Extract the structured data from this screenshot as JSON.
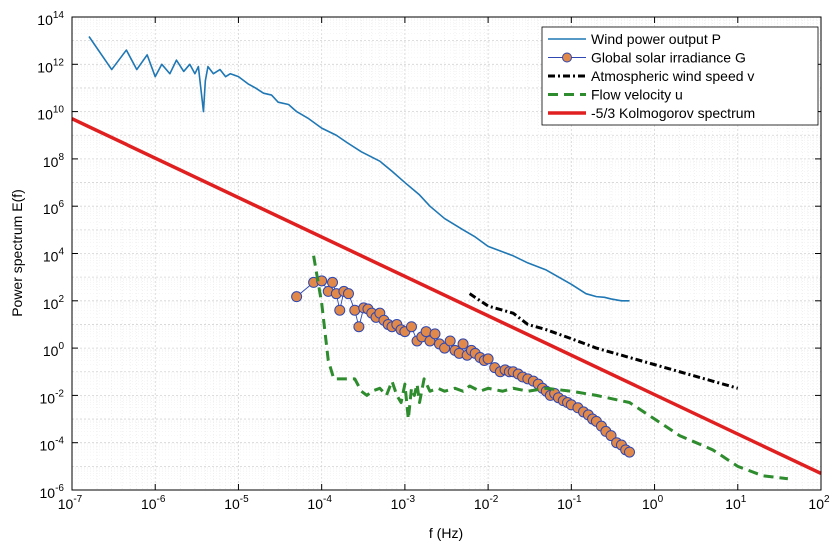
{
  "chart_data": {
    "type": "line",
    "xlabel": "f (Hz)",
    "ylabel": "Power spectrum E(f)",
    "xscale": "log",
    "yscale": "log",
    "xlim": [
      1e-07,
      100
    ],
    "ylim": [
      1e-06,
      100000000000000.0
    ],
    "grid": true,
    "legend_position": "top-right",
    "x_ticks": [
      {
        "base": "10",
        "exp": "-7"
      },
      {
        "base": "10",
        "exp": "-6"
      },
      {
        "base": "10",
        "exp": "-5"
      },
      {
        "base": "10",
        "exp": "-4"
      },
      {
        "base": "10",
        "exp": "-3"
      },
      {
        "base": "10",
        "exp": "-2"
      },
      {
        "base": "10",
        "exp": "-1"
      },
      {
        "base": "10",
        "exp": "0"
      },
      {
        "base": "10",
        "exp": "1"
      },
      {
        "base": "10",
        "exp": "2"
      }
    ],
    "y_ticks": [
      {
        "base": "10",
        "exp": "-6"
      },
      {
        "base": "10",
        "exp": "-4"
      },
      {
        "base": "10",
        "exp": "-2"
      },
      {
        "base": "10",
        "exp": "0"
      },
      {
        "base": "10",
        "exp": "2"
      },
      {
        "base": "10",
        "exp": "4"
      },
      {
        "base": "10",
        "exp": "6"
      },
      {
        "base": "10",
        "exp": "8"
      },
      {
        "base": "10",
        "exp": "10"
      },
      {
        "base": "10",
        "exp": "12"
      },
      {
        "base": "10",
        "exp": "14"
      }
    ],
    "series": [
      {
        "name": "Wind power output P",
        "color": "#1f77b4",
        "style": "solid",
        "x": [
          1.6e-07,
          3e-07,
          4.5e-07,
          6e-07,
          8e-07,
          1e-06,
          1.2e-06,
          1.5e-06,
          1.8e-06,
          2.2e-06,
          2.6e-06,
          3e-06,
          3.3e-06,
          3.8e-06,
          4e-06,
          4.3e-06,
          5e-06,
          6e-06,
          7e-06,
          8e-06,
          1e-05,
          1.3e-05,
          1.6e-05,
          2e-05,
          2.5e-05,
          3e-05,
          4e-05,
          5e-05,
          7e-05,
          0.0001,
          0.00015,
          0.0002,
          0.0003,
          0.0005,
          0.0007,
          0.001,
          0.0015,
          0.002,
          0.003,
          0.005,
          0.007,
          0.01,
          0.02,
          0.03,
          0.05,
          0.1,
          0.15,
          0.2,
          0.25,
          0.3,
          0.4,
          0.5
        ],
        "y": [
          15000000000000.0,
          600000000000.0,
          4000000000000.0,
          600000000000.0,
          2500000000000.0,
          300000000000.0,
          1000000000000.0,
          400000000000.0,
          1500000000000.0,
          500000000000.0,
          1000000000000.0,
          400000000000.0,
          800000000000.0,
          10000000000.0,
          200000000000.0,
          800000000000.0,
          400000000000.0,
          600000000000.0,
          300000000000.0,
          400000000000.0,
          300000000000.0,
          150000000000.0,
          100000000000.0,
          60000000000.0,
          50000000000.0,
          25000000000.0,
          20000000000.0,
          10000000000.0,
          5000000000.0,
          2000000000.0,
          1000000000.0,
          500000000.0,
          200000000.0,
          80000000.0,
          30000000.0,
          10000000.0,
          3000000.0,
          1000000.0,
          300000.0,
          100000.0,
          50000.0,
          20000.0,
          8000.0,
          4000.0,
          2000.0,
          500.0,
          200.0,
          150.0,
          140.0,
          120.0,
          100.0,
          100.0
        ]
      },
      {
        "name": "Global solar irradiance G",
        "color": "#2f47b0",
        "marker_fill": "#e0894a",
        "style": "solid-markers",
        "x": [
          5e-05,
          8e-05,
          0.0001,
          0.00012,
          0.000135,
          0.00015,
          0.000165,
          0.000185,
          0.00021,
          0.00025,
          0.00028,
          0.00032,
          0.00036,
          0.0004,
          0.00045,
          0.0005,
          0.00056,
          0.00063,
          0.0007,
          0.0008,
          0.0009,
          0.001,
          0.0012,
          0.0014,
          0.0016,
          0.0018,
          0.002,
          0.0023,
          0.0026,
          0.003,
          0.0035,
          0.004,
          0.0045,
          0.005,
          0.0056,
          0.0063,
          0.007,
          0.008,
          0.009,
          0.01,
          0.012,
          0.014,
          0.016,
          0.018,
          0.02,
          0.023,
          0.026,
          0.03,
          0.035,
          0.04,
          0.045,
          0.05,
          0.056,
          0.063,
          0.07,
          0.08,
          0.09,
          0.1,
          0.12,
          0.14,
          0.16,
          0.18,
          0.2,
          0.23,
          0.26,
          0.3,
          0.35,
          0.4,
          0.45,
          0.5
        ],
        "y": [
          150,
          600,
          700,
          250,
          600,
          200,
          40,
          250,
          200,
          40,
          8,
          50,
          45,
          30,
          20,
          30,
          15,
          10,
          8,
          10,
          6,
          5,
          8,
          2,
          3,
          5,
          2,
          4,
          1.5,
          1,
          2,
          0.8,
          0.6,
          1.5,
          0.5,
          0.8,
          0.6,
          0.4,
          0.3,
          0.35,
          0.15,
          0.1,
          0.12,
          0.1,
          0.1,
          0.08,
          0.06,
          0.05,
          0.04,
          0.03,
          0.02,
          0.015,
          0.01,
          0.012,
          0.008,
          0.006,
          0.005,
          0.004,
          0.003,
          0.002,
          0.0015,
          0.001,
          0.0008,
          0.0005,
          0.0003,
          0.0002,
          0.0001,
          8e-05,
          5e-05,
          4e-05
        ]
      },
      {
        "name": "Atmospheric wind speed v",
        "color": "#000000",
        "style": "dashdot",
        "x": [
          0.006,
          0.01,
          0.02,
          0.03,
          0.05,
          0.1,
          0.2,
          0.5,
          1,
          2,
          5,
          10
        ],
        "y": [
          200,
          60,
          30,
          10,
          6,
          2.5,
          1,
          0.4,
          0.2,
          0.1,
          0.04,
          0.02
        ]
      },
      {
        "name": "Flow velocity u",
        "color": "#2e8b2e",
        "style": "dashed",
        "x": [
          8e-05,
          0.0001,
          0.00012,
          0.00014,
          0.00016,
          0.0002,
          0.00025,
          0.0003,
          0.00035,
          0.0004,
          0.0005,
          0.0006,
          0.0007,
          0.0008,
          0.0009,
          0.001,
          0.0011,
          0.0012,
          0.0013,
          0.0014,
          0.0015,
          0.0017,
          0.002,
          0.0025,
          0.003,
          0.004,
          0.005,
          0.006,
          0.008,
          0.01,
          0.015,
          0.02,
          0.03,
          0.05,
          0.1,
          0.2,
          0.5,
          1,
          2,
          5,
          10,
          20,
          40
        ],
        "y": [
          8000,
          80,
          0.3,
          0.05,
          0.05,
          0.05,
          0.05,
          0.015,
          0.01,
          0.015,
          0.02,
          0.01,
          0.04,
          0.01,
          0.005,
          0.03,
          0.001,
          0.02,
          0.01,
          0.03,
          0.005,
          0.05,
          0.015,
          0.02,
          0.015,
          0.02,
          0.015,
          0.025,
          0.015,
          0.02,
          0.015,
          0.02,
          0.015,
          0.02,
          0.015,
          0.01,
          0.005,
          0.001,
          0.0002,
          5e-05,
          1e-05,
          4e-06,
          3e-06
        ]
      },
      {
        "name": "-5/3 Kolmogorov spectrum",
        "color": "#e02020",
        "style": "solid",
        "x": [
          1e-07,
          100
        ],
        "y": [
          5000000000.0,
          5e-06
        ]
      }
    ]
  }
}
